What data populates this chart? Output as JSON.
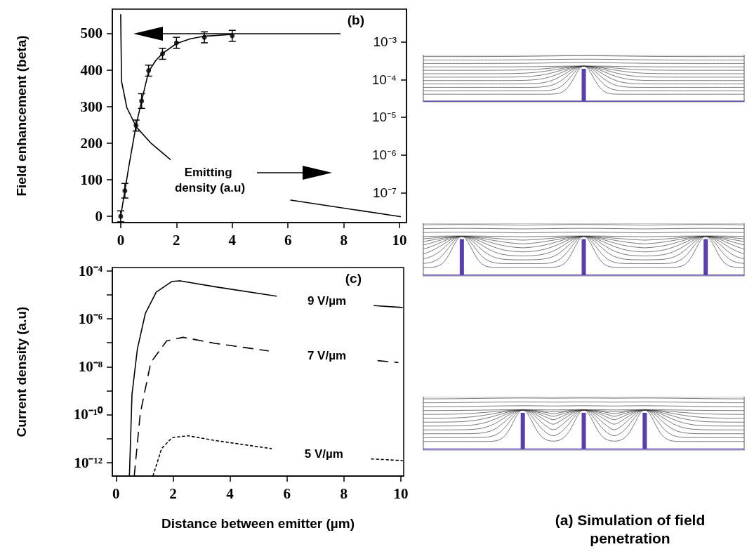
{
  "chart_data": [
    {
      "type": "scatter",
      "ylabel": "Field enhancement (beta)",
      "xlim": [
        -0.3,
        10.25
      ],
      "xticks": [
        0,
        2,
        4,
        6,
        8,
        10
      ],
      "ylim": [
        -17,
        566
      ],
      "yticks": [
        0,
        100,
        200,
        300,
        400,
        500
      ],
      "y2lim": [
        1.6e-08,
        0.0074
      ],
      "y2ticks": [
        {
          "value": 0.001,
          "label": "10⁻³"
        },
        {
          "value": 0.0001,
          "label": "10⁻⁴"
        },
        {
          "value": 1e-05,
          "label": "10⁻⁵"
        },
        {
          "value": 1e-06,
          "label": "10⁻⁶"
        },
        {
          "value": 1e-07,
          "label": "10⁻⁷"
        }
      ],
      "log": "y2",
      "grid": false,
      "annotations": [
        "(b)"
      ],
      "series": [
        {
          "type": "scatter",
          "marker": "circle",
          "color": "#000000",
          "x": [
            0,
            0.15,
            0.55,
            0.75,
            1,
            1.5,
            2,
            3,
            4
          ],
          "values": [
            0,
            70,
            248,
            315,
            398,
            444,
            474,
            489,
            493
          ],
          "errors": [
            15,
            20,
            15,
            20,
            15,
            15,
            15,
            15,
            15
          ]
        },
        {
          "type": "line",
          "color": "#000000",
          "x": [
            0,
            0.15,
            0.3,
            0.55,
            0.75,
            1,
            1.25,
            1.5,
            2,
            2.5,
            3,
            4
          ],
          "values": [
            0,
            70,
            140,
            248,
            315,
            395,
            425,
            445,
            472,
            485,
            492,
            497
          ]
        },
        {
          "type": "line",
          "axis": "y2",
          "name": "Emitting density (a.u)",
          "color": "#000000",
          "x": [
            0,
            0.03,
            0.22,
            0.56,
            1.1,
            1.78,
            3.2,
            6.1,
            10.03
          ],
          "values": [
            0.0053,
            9e-05,
            1.8e-05,
            5.5e-06,
            2e-06,
            7.6e-07,
            null,
            6.3e-08,
            2.3e-08
          ]
        }
      ]
    },
    {
      "type": "line",
      "xlabel": "Distance between emitter (µm)",
      "ylabel": "Current density (a.u)",
      "xlim": [
        -0.13,
        10.1
      ],
      "xticks": [
        0,
        2,
        4,
        6,
        8,
        10
      ],
      "ylim": [
        2.7e-13,
        0.00014
      ],
      "yticks": [
        {
          "value": 0.0001,
          "label": "10⁻⁴"
        },
        {
          "value": 1e-05,
          "label": null
        },
        {
          "value": 1e-06,
          "label": "10⁻⁶"
        },
        {
          "value": 1e-07,
          "label": null
        },
        {
          "value": 1e-08,
          "label": "10⁻⁸"
        },
        {
          "value": 1e-09,
          "label": null
        },
        {
          "value": 1e-10,
          "label": "10⁻¹⁰"
        },
        {
          "value": 1e-11,
          "label": null
        },
        {
          "value": 1e-12,
          "label": "10⁻¹²"
        }
      ],
      "log": true,
      "grid": false,
      "annotations": [
        "(c)"
      ],
      "series": [
        {
          "name": "9 V/µm",
          "color": "#000000",
          "line_style": "solid",
          "x": [
            0.47,
            0.56,
            0.75,
            1.03,
            1.41,
            1.97,
            2.25,
            3.47,
            5.63,
            7.4,
            9.06,
            10.05
          ],
          "values": [
            2.8e-13,
            6.9e-10,
            5.6e-08,
            1.7e-06,
            1.3e-05,
            3.7e-05,
            3.9e-05,
            2.2e-05,
            8.9e-06,
            null,
            3.6e-06,
            3e-06
          ]
        },
        {
          "name": "7 V/µm",
          "color": "#000000",
          "line_style": "dashed",
          "x": [
            0.64,
            0.85,
            1.22,
            1.78,
            2.35,
            3.47,
            5.35,
            7.4,
            9.2,
            9.9
          ],
          "values": [
            2.8e-13,
            1.1e-10,
            1.5e-08,
            1.2e-07,
            1.7e-07,
            9.5e-08,
            4.6e-08,
            null,
            1.8e-08,
            1.5e-08
          ]
        },
        {
          "name": "5 V/µm",
          "color": "#000000",
          "line_style": "dotted",
          "x": [
            1.3,
            1.6,
            1.97,
            2.54,
            3.47,
            5.45,
            7.3,
            8.97,
            10.05
          ],
          "values": [
            2.8e-13,
            3.8e-12,
            1.1e-11,
            1.3e-11,
            8.3e-12,
            3.8e-12,
            null,
            1.4e-12,
            1.2e-12
          ]
        }
      ]
    },
    {
      "type": "other",
      "annotations": [
        "(a) Simulation of field penetration"
      ]
    }
  ]
}
